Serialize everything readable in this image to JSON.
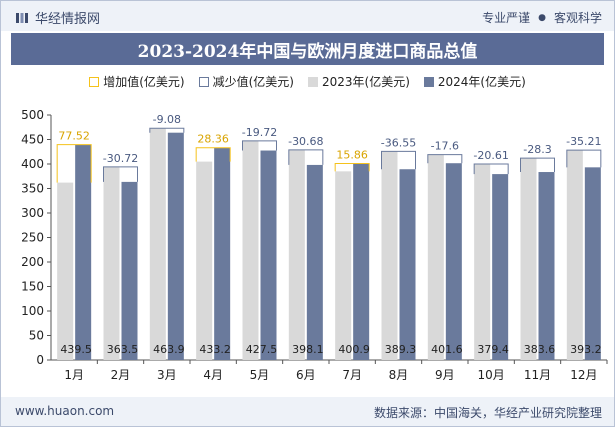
{
  "header": {
    "brand": "华经情报网",
    "slogan_left": "专业严谨",
    "slogan_right": "客观科学"
  },
  "footer": {
    "site": "www.huaon.com",
    "source": "数据来源：中国海关，华经产业研究院整理"
  },
  "colors": {
    "bar_2023": "#d9d9d9",
    "bar_2024": "#6a7a9c",
    "increase": "#f5c21b",
    "decrease": "#6a7a9c",
    "title_bg": "#5a6b96"
  },
  "chart_data": {
    "type": "bar",
    "title": "2023-2024年中国与欧洲月度进口商品总值",
    "legend": [
      "增加值(亿美元)",
      "减少值(亿美元)",
      "2023年(亿美元)",
      "2024年(亿美元)"
    ],
    "legend_position": "top",
    "categories": [
      "1月",
      "2月",
      "3月",
      "4月",
      "5月",
      "6月",
      "7月",
      "8月",
      "9月",
      "10月",
      "11月",
      "12月"
    ],
    "series": [
      {
        "name": "2023年(亿美元)",
        "values": [
          361.98,
          394.22,
          472.98,
          404.84,
          447.22,
          428.78,
          385.04,
          425.85,
          419.2,
          400.01,
          411.9,
          428.41
        ]
      },
      {
        "name": "2024年(亿美元)",
        "values": [
          439.5,
          363.5,
          463.9,
          433.2,
          427.5,
          398.1,
          400.9,
          389.3,
          401.6,
          379.4,
          383.6,
          393.2
        ]
      }
    ],
    "value_labels": [
      "439.5",
      "363.5",
      "463.9",
      "433.2",
      "427.5",
      "398.1",
      "400.9",
      "389.3",
      "401.6",
      "379.4",
      "383.6",
      "393.2"
    ],
    "diff_labels": [
      "77.52",
      "-30.72",
      "-9.08",
      "28.36",
      "-19.72",
      "-30.68",
      "15.86",
      "-36.55",
      "-17.6",
      "-20.61",
      "-28.3",
      "-35.21"
    ],
    "diff_values": [
      77.52,
      -30.72,
      -9.08,
      28.36,
      -19.72,
      -30.68,
      15.86,
      -36.55,
      -17.6,
      -20.61,
      -28.3,
      -35.21
    ],
    "y_ticks": [
      "0",
      "50",
      "100",
      "150",
      "200",
      "250",
      "300",
      "350",
      "400",
      "450",
      "500"
    ],
    "ylim": [
      0,
      500
    ],
    "grid": false
  }
}
